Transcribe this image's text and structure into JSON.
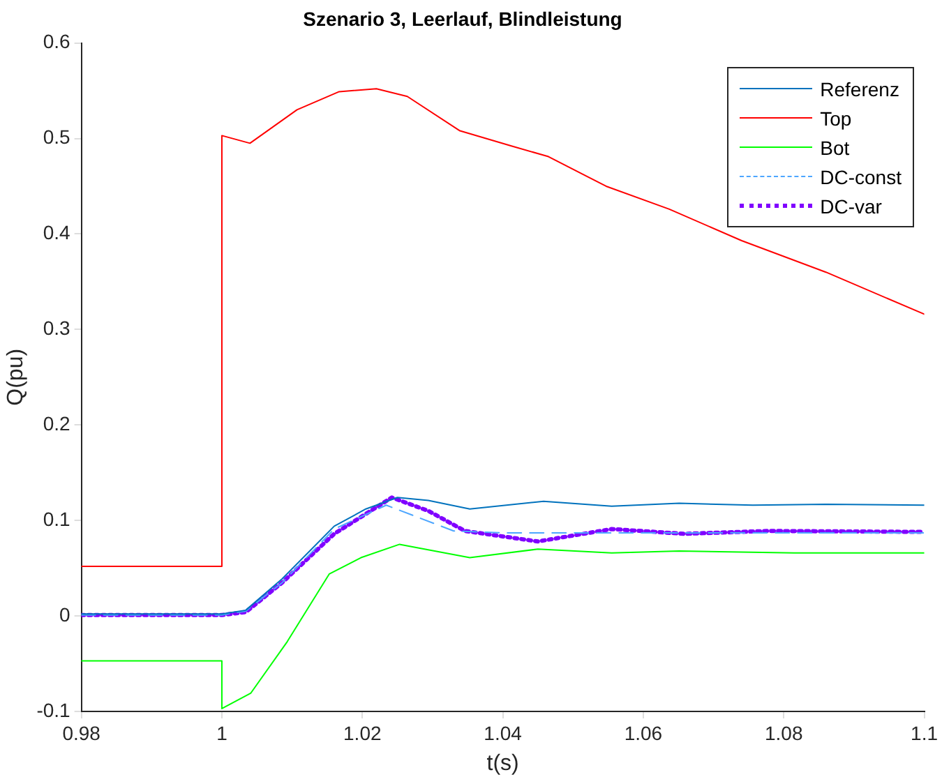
{
  "chart_data": {
    "type": "line",
    "title": "Szenario 3, Leerlauf, Blindleistung",
    "xlabel": "t(s)",
    "ylabel": "Q(pu)",
    "xlim": [
      0.98,
      1.1
    ],
    "xticks": [
      0.98,
      1,
      1.02,
      1.04,
      1.06,
      1.08,
      1.1
    ],
    "ylim": [
      -0.1,
      0.6
    ],
    "yticks": [
      -0.1,
      0,
      0.1,
      0.2,
      0.3,
      0.4,
      0.5,
      0.6
    ],
    "grid": false,
    "legend": "top right",
    "marker": "none",
    "series": [
      {
        "name": "Referenz",
        "color": "#0072bd",
        "line_style": "solid",
        "x": [
          0.98,
          1,
          1.0034,
          1.0086,
          1.016,
          1.0205,
          1.025,
          1.0294,
          1.0353,
          1.0458,
          1.0555,
          1.0651,
          1.0756,
          1.086,
          1.1
        ],
        "values": [
          0.002,
          0.002,
          0.006,
          0.039,
          0.094,
          0.112,
          0.124,
          0.121,
          0.112,
          0.12,
          0.115,
          0.118,
          0.116,
          0.117,
          0.116
        ]
      },
      {
        "name": "Top",
        "color": "#ff0000",
        "line_style": "solid",
        "x": [
          0.98,
          1,
          1,
          1.004,
          1.0107,
          1.0167,
          1.022,
          1.0264,
          1.0339,
          1.0413,
          1.0465,
          1.0547,
          1.0637,
          1.074,
          1.086,
          1.1
        ],
        "values": [
          0.052,
          0.052,
          0.503,
          0.495,
          0.53,
          0.549,
          0.552,
          0.544,
          0.508,
          0.492,
          0.481,
          0.45,
          0.426,
          0.393,
          0.36,
          0.316
        ]
      },
      {
        "name": "Bot",
        "color": "#00ff00",
        "line_style": "solid",
        "x": [
          0.98,
          1,
          1,
          1.0041,
          1.0093,
          1.0153,
          1.0198,
          1.0253,
          1.0353,
          1.045,
          1.0555,
          1.0651,
          1.0815,
          1.1
        ],
        "values": [
          -0.047,
          -0.047,
          -0.097,
          -0.081,
          -0.027,
          0.044,
          0.061,
          0.075,
          0.061,
          0.07,
          0.066,
          0.068,
          0.066,
          0.066
        ]
      },
      {
        "name": "DC-const",
        "color": "#4da6ff",
        "line_style": "dashed",
        "x": [
          0.98,
          1,
          1.0034,
          1.0086,
          1.016,
          1.0234,
          1.033,
          1.04,
          1.06,
          1.08,
          1.1
        ],
        "values": [
          0.001,
          0.001,
          0.005,
          0.035,
          0.091,
          0.116,
          0.089,
          0.087,
          0.087,
          0.087,
          0.087
        ]
      },
      {
        "name": "DC-var",
        "color": "#8000ff",
        "line_style": "dotted",
        "x": [
          0.98,
          1,
          1.0034,
          1.0086,
          1.016,
          1.0242,
          1.0294,
          1.0346,
          1.045,
          1.0555,
          1.0658,
          1.0778,
          1.1
        ],
        "values": [
          0.001,
          0.001,
          0.004,
          0.035,
          0.086,
          0.124,
          0.11,
          0.089,
          0.078,
          0.091,
          0.086,
          0.089,
          0.088
        ]
      }
    ]
  }
}
